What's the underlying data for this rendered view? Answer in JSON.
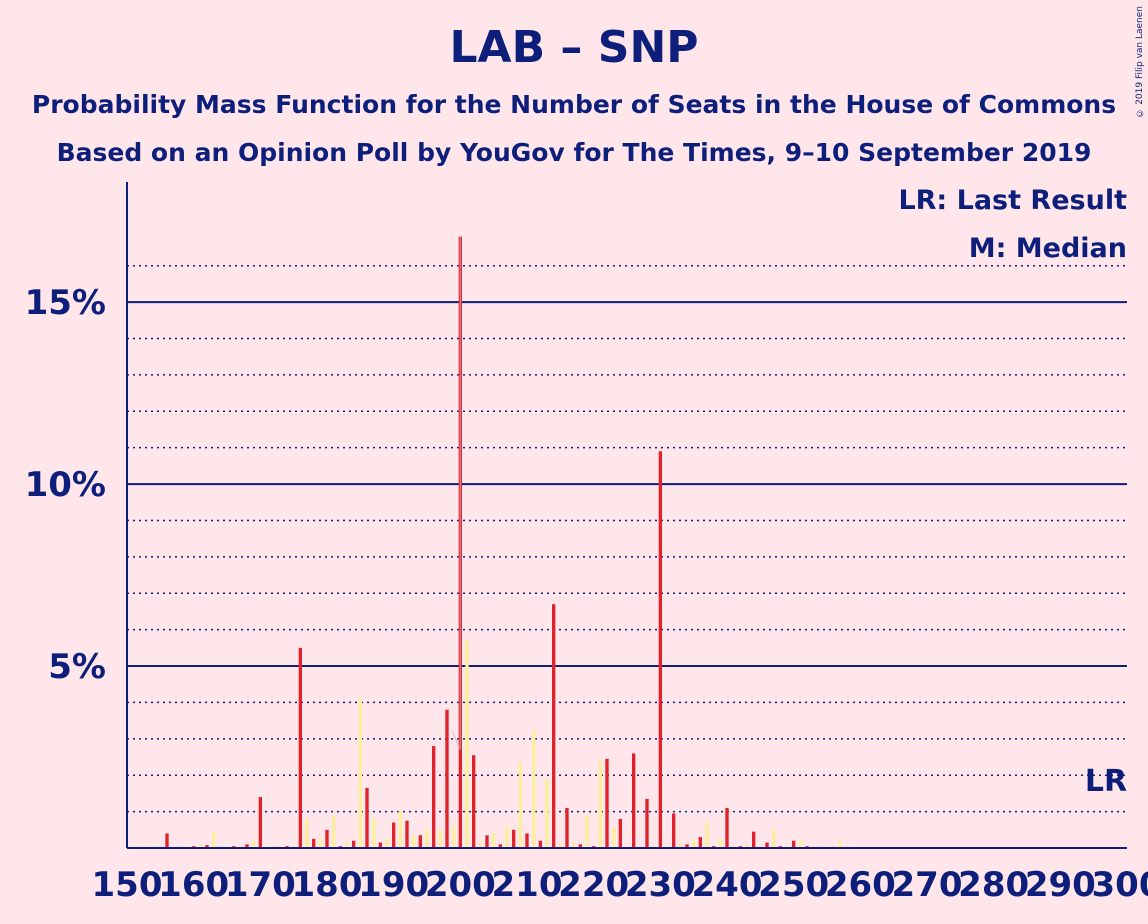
{
  "title": "LAB – SNP",
  "subtitle1": "Probability Mass Function for the Number of Seats in the House of Commons",
  "subtitle2": "Based on an Opinion Poll by YouGov for The Times, 9–10 September 2019",
  "copyright": "© 2019 Filip van Laenen",
  "colors": {
    "background": "#FFE6EA",
    "axis": "#0D1F7A",
    "bar_main": "#E0222A",
    "bar_secondary": "#FCEE9A"
  },
  "chart_data": {
    "type": "bar",
    "xlim": [
      150,
      300
    ],
    "ylim": [
      0,
      18.3
    ],
    "x_ticks": [
      150,
      160,
      170,
      180,
      190,
      200,
      210,
      220,
      230,
      240,
      250,
      260,
      270,
      280,
      290,
      300
    ],
    "x_tick_labels": [
      "150",
      "160",
      "170",
      "180",
      "190",
      "200",
      "210",
      "220",
      "230",
      "240",
      "250",
      "260",
      "270",
      "280",
      "290",
      "300"
    ],
    "y_ticks_major": [
      5,
      10,
      15
    ],
    "y_tick_labels": [
      "5%",
      "10%",
      "15%"
    ],
    "y_ticks_minor": [
      1,
      2,
      3,
      4,
      6,
      7,
      8,
      9,
      11,
      12,
      13,
      14,
      16
    ],
    "legend": [
      "LR: Last Result",
      "M: Median"
    ],
    "last_result_label": "LR",
    "last_result_seat": 298,
    "median_seat": 200,
    "series": [
      {
        "values": [
          [
            152,
            0.03
          ],
          [
            154,
            0.03
          ],
          [
            156,
            0.4
          ],
          [
            158,
            0.03
          ],
          [
            160,
            0.05
          ],
          [
            162,
            0.08
          ],
          [
            164,
            0.03
          ],
          [
            166,
            0.05
          ],
          [
            168,
            0.1
          ],
          [
            170,
            1.4
          ],
          [
            172,
            0.03
          ],
          [
            174,
            0.05
          ],
          [
            176,
            5.5
          ],
          [
            178,
            0.25
          ],
          [
            180,
            0.5
          ],
          [
            182,
            0.05
          ],
          [
            184,
            0.2
          ],
          [
            186,
            1.65
          ],
          [
            188,
            0.15
          ],
          [
            190,
            0.7
          ],
          [
            192,
            0.75
          ],
          [
            194,
            0.35
          ],
          [
            196,
            2.8
          ],
          [
            198,
            3.8
          ],
          [
            200,
            16.8
          ],
          [
            202,
            2.55
          ],
          [
            204,
            0.35
          ],
          [
            206,
            0.1
          ],
          [
            208,
            0.5
          ],
          [
            210,
            0.4
          ],
          [
            212,
            0.2
          ],
          [
            214,
            6.7
          ],
          [
            216,
            1.1
          ],
          [
            218,
            0.1
          ],
          [
            220,
            0.05
          ],
          [
            222,
            2.45
          ],
          [
            224,
            0.8
          ],
          [
            226,
            2.6
          ],
          [
            228,
            1.35
          ],
          [
            230,
            10.9
          ],
          [
            232,
            0.95
          ],
          [
            234,
            0.1
          ],
          [
            236,
            0.3
          ],
          [
            238,
            0.05
          ],
          [
            240,
            1.1
          ],
          [
            242,
            0.05
          ],
          [
            244,
            0.45
          ],
          [
            246,
            0.15
          ],
          [
            248,
            0.05
          ],
          [
            250,
            0.2
          ],
          [
            252,
            0.05
          ],
          [
            254,
            0.03
          ],
          [
            256,
            0.03
          ],
          [
            258,
            0.03
          ]
        ]
      },
      {
        "values": [
          [
            151,
            0.03
          ],
          [
            153,
            0.03
          ],
          [
            155,
            0.03
          ],
          [
            157,
            0.03
          ],
          [
            159,
            0.05
          ],
          [
            161,
            0.1
          ],
          [
            163,
            0.45
          ],
          [
            165,
            0.05
          ],
          [
            167,
            0.05
          ],
          [
            169,
            0.2
          ],
          [
            171,
            0.05
          ],
          [
            173,
            0.05
          ],
          [
            175,
            0.05
          ],
          [
            177,
            0.8
          ],
          [
            179,
            0.25
          ],
          [
            181,
            0.9
          ],
          [
            183,
            0.15
          ],
          [
            185,
            4.1
          ],
          [
            187,
            0.8
          ],
          [
            189,
            0.25
          ],
          [
            191,
            1.05
          ],
          [
            193,
            0.35
          ],
          [
            195,
            0.5
          ],
          [
            197,
            0.5
          ],
          [
            199,
            0.6
          ],
          [
            201,
            5.7
          ],
          [
            203,
            0.15
          ],
          [
            205,
            0.4
          ],
          [
            207,
            0.6
          ],
          [
            209,
            2.35
          ],
          [
            211,
            3.25
          ],
          [
            213,
            1.9
          ],
          [
            215,
            0.15
          ],
          [
            217,
            0.15
          ],
          [
            219,
            0.9
          ],
          [
            221,
            2.4
          ],
          [
            223,
            0.55
          ],
          [
            225,
            0.05
          ],
          [
            227,
            0.05
          ],
          [
            229,
            0.05
          ],
          [
            231,
            0.05
          ],
          [
            233,
            0.15
          ],
          [
            235,
            0.2
          ],
          [
            237,
            0.7
          ],
          [
            239,
            0.25
          ],
          [
            241,
            0.05
          ],
          [
            243,
            0.1
          ],
          [
            245,
            0.05
          ],
          [
            247,
            0.5
          ],
          [
            249,
            0.05
          ],
          [
            251,
            0.2
          ],
          [
            253,
            0.05
          ],
          [
            255,
            0.03
          ],
          [
            257,
            0.2
          ],
          [
            259,
            0.03
          ]
        ]
      }
    ]
  }
}
